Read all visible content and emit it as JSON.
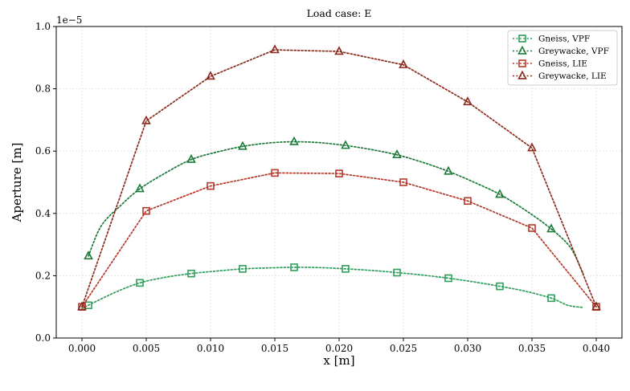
{
  "chart_data": {
    "type": "line",
    "title": "Load case: E",
    "xlabel": "x [m]",
    "ylabel": "Aperture [m]",
    "y_offset_label": "1e−5",
    "xlim": [
      -0.002,
      0.042
    ],
    "ylim": [
      0.0,
      1.0
    ],
    "grid": true,
    "legend_position": "top-right",
    "x_ticks": [
      0.0,
      0.005,
      0.01,
      0.015,
      0.02,
      0.025,
      0.03,
      0.035,
      0.04
    ],
    "x_tick_labels": [
      "0.000",
      "0.005",
      "0.010",
      "0.015",
      "0.020",
      "0.025",
      "0.030",
      "0.035",
      "0.040"
    ],
    "y_ticks": [
      0.0,
      0.2,
      0.4,
      0.6,
      0.8,
      1.0
    ],
    "y_tick_labels": [
      "0.0",
      "0.2",
      "0.4",
      "0.6",
      "0.8",
      "1.0"
    ],
    "series": [
      {
        "name": "Gneiss, VPF",
        "color": "#2e9e5b",
        "marker": "square",
        "smooth": true,
        "x": [
          0.0005,
          0.0045,
          0.0085,
          0.0125,
          0.0165,
          0.0205,
          0.0245,
          0.0285,
          0.0325,
          0.0365
        ],
        "y": [
          0.105,
          0.177,
          0.207,
          0.222,
          0.227,
          0.222,
          0.21,
          0.192,
          0.166,
          0.128
        ],
        "curve_x": [
          0.0,
          0.0025,
          0.0045,
          0.0065,
          0.0085,
          0.0105,
          0.0125,
          0.0145,
          0.0165,
          0.0185,
          0.0205,
          0.0225,
          0.0245,
          0.0265,
          0.0285,
          0.0305,
          0.0325,
          0.0345,
          0.0365,
          0.0378,
          0.039
        ],
        "curve_y": [
          0.095,
          0.145,
          0.177,
          0.195,
          0.207,
          0.215,
          0.222,
          0.225,
          0.227,
          0.226,
          0.222,
          0.217,
          0.21,
          0.202,
          0.192,
          0.18,
          0.166,
          0.15,
          0.128,
          0.105,
          0.098
        ]
      },
      {
        "name": "Greywacke, VPF",
        "color": "#1b7a3a",
        "marker": "triangle",
        "smooth": true,
        "x": [
          0.0005,
          0.0045,
          0.0085,
          0.0125,
          0.0165,
          0.0205,
          0.0245,
          0.0285,
          0.0325,
          0.0365
        ],
        "y": [
          0.263,
          0.479,
          0.573,
          0.615,
          0.63,
          0.618,
          0.588,
          0.535,
          0.461,
          0.35
        ],
        "curve_x": [
          0.0005,
          0.0015,
          0.003,
          0.0045,
          0.0065,
          0.0085,
          0.0105,
          0.0125,
          0.0145,
          0.0165,
          0.0185,
          0.0205,
          0.0225,
          0.0245,
          0.0265,
          0.0285,
          0.0305,
          0.0325,
          0.0345,
          0.0365,
          0.038,
          0.039
        ],
        "curve_y": [
          0.263,
          0.36,
          0.425,
          0.479,
          0.53,
          0.573,
          0.597,
          0.615,
          0.626,
          0.63,
          0.627,
          0.618,
          0.605,
          0.588,
          0.564,
          0.535,
          0.5,
          0.461,
          0.41,
          0.35,
          0.29,
          0.205
        ]
      },
      {
        "name": "Gneiss, LIE",
        "color": "#b5382a",
        "marker": "square",
        "smooth": false,
        "x": [
          0.0,
          0.005,
          0.01,
          0.015,
          0.02,
          0.025,
          0.03,
          0.035,
          0.04
        ],
        "y": [
          0.1,
          0.408,
          0.488,
          0.53,
          0.528,
          0.5,
          0.44,
          0.353,
          0.1
        ]
      },
      {
        "name": "Greywacke, LIE",
        "color": "#8a2a1c",
        "marker": "triangle",
        "smooth": false,
        "x": [
          0.0,
          0.005,
          0.01,
          0.015,
          0.02,
          0.025,
          0.03,
          0.035,
          0.04
        ],
        "y": [
          0.1,
          0.697,
          0.84,
          0.925,
          0.92,
          0.877,
          0.758,
          0.61,
          0.1
        ]
      }
    ]
  }
}
